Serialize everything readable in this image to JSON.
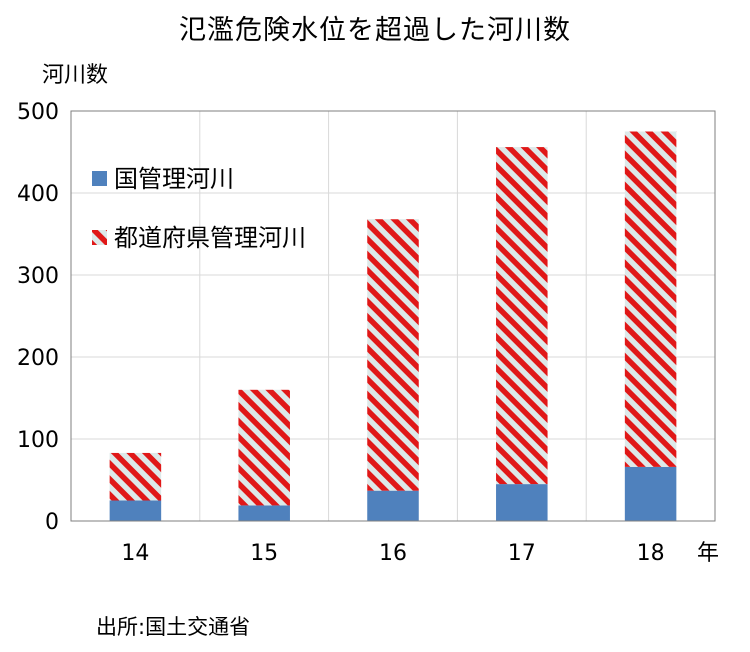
{
  "chart_data": {
    "type": "bar",
    "stacked": true,
    "title": "氾濫危険水位を超過した河川数",
    "ylabel": "河川数",
    "xlabel": "年",
    "categories": [
      "14",
      "15",
      "16",
      "17",
      "18"
    ],
    "ylim": [
      0,
      500
    ],
    "yticks": [
      "0",
      "100",
      "200",
      "300",
      "400",
      "500"
    ],
    "grid": true,
    "legend_position": "upper-left inside plot",
    "series": [
      {
        "name": "国管理河川",
        "values": [
          25,
          19,
          37,
          45,
          66
        ],
        "color": "#4f81bd",
        "pattern": "solid"
      },
      {
        "name": "都道府県管理河川",
        "values": [
          58,
          141,
          331,
          411,
          409
        ],
        "color": "#e02020",
        "pattern": "diagonal-stripes"
      }
    ]
  },
  "source": "出所:国土交通省"
}
